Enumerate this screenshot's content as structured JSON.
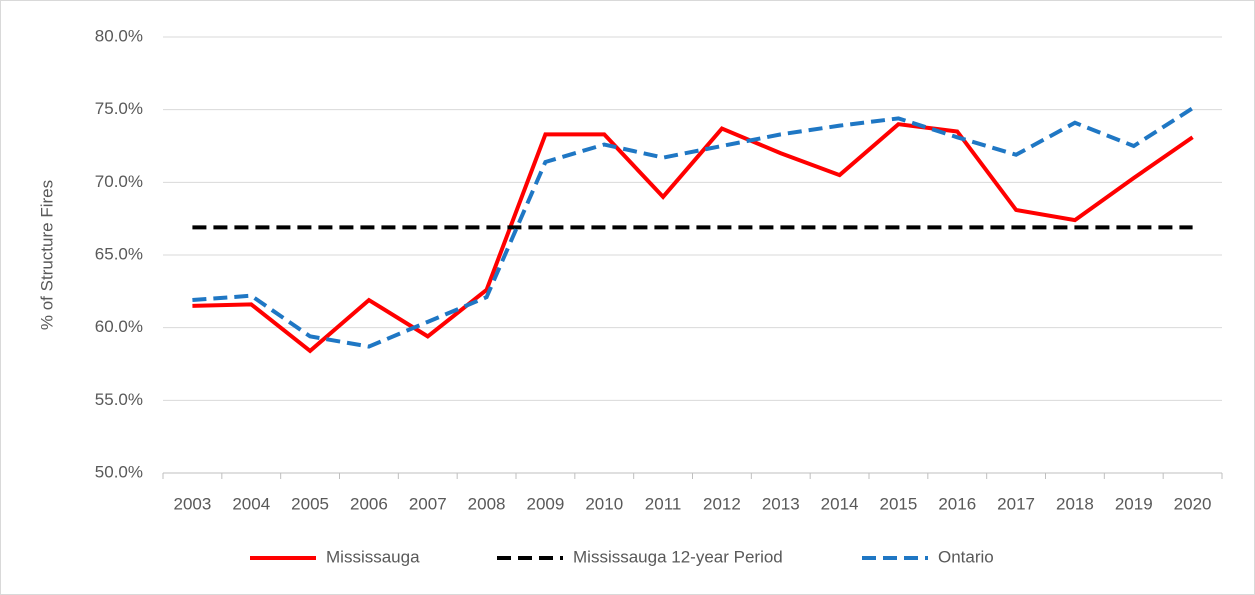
{
  "chart_data": {
    "type": "line",
    "y_label": "% of Structure Fires",
    "categories": [
      "2003",
      "2004",
      "2005",
      "2006",
      "2007",
      "2008",
      "2009",
      "2010",
      "2011",
      "2012",
      "2013",
      "2014",
      "2015",
      "2016",
      "2017",
      "2018",
      "2019",
      "2020"
    ],
    "series": [
      {
        "name": "Mississauga",
        "color": "#ff0000",
        "dash": "solid",
        "values": [
          61.5,
          61.6,
          58.4,
          61.9,
          59.4,
          62.6,
          73.3,
          73.3,
          69.0,
          73.7,
          72.0,
          70.5,
          74.0,
          73.5,
          68.1,
          67.4,
          70.3,
          73.1
        ]
      },
      {
        "name": "Mississauga 12-year Period",
        "color": "#000000",
        "dash": "dashed",
        "values": [
          66.9,
          66.9,
          66.9,
          66.9,
          66.9,
          66.9,
          66.9,
          66.9,
          66.9,
          66.9,
          66.9,
          66.9,
          66.9,
          66.9,
          66.9,
          66.9,
          66.9,
          66.9
        ]
      },
      {
        "name": "Ontario",
        "color": "#1f77c4",
        "dash": "dashed",
        "values": [
          61.9,
          62.2,
          59.4,
          58.7,
          60.4,
          62.1,
          71.4,
          72.6,
          71.7,
          72.5,
          73.3,
          73.9,
          74.4,
          73.1,
          71.9,
          74.1,
          72.5,
          75.1
        ]
      }
    ],
    "ylim": [
      50,
      80
    ],
    "yticks": [
      {
        "value": 50,
        "label": "50.0%"
      },
      {
        "value": 55,
        "label": "55.0%"
      },
      {
        "value": 60,
        "label": "60.0%"
      },
      {
        "value": 65,
        "label": "65.0%"
      },
      {
        "value": 70,
        "label": "70.0%"
      },
      {
        "value": 75,
        "label": "75.0%"
      },
      {
        "value": 80,
        "label": "80.0%"
      }
    ],
    "grid": true,
    "legend": "bottom"
  }
}
